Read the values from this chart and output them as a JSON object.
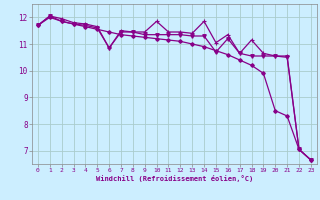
{
  "xlabel": "Windchill (Refroidissement éolien,°C)",
  "xlim": [
    -0.5,
    23.5
  ],
  "ylim": [
    6.5,
    12.5
  ],
  "yticks": [
    7,
    8,
    9,
    10,
    11,
    12
  ],
  "xticks": [
    0,
    1,
    2,
    3,
    4,
    5,
    6,
    7,
    8,
    9,
    10,
    11,
    12,
    13,
    14,
    15,
    16,
    17,
    18,
    19,
    20,
    21,
    22,
    23
  ],
  "bg_color": "#cceeff",
  "grid_color": "#aacccc",
  "line_color": "#880088",
  "series_smooth": [
    11.7,
    12.0,
    11.85,
    11.75,
    11.65,
    11.55,
    11.45,
    11.35,
    11.3,
    11.25,
    11.2,
    11.15,
    11.1,
    11.0,
    10.9,
    10.75,
    10.6,
    10.4,
    10.2,
    9.9,
    8.5,
    8.3,
    7.05,
    6.65
  ],
  "series_top": [
    11.7,
    12.05,
    11.95,
    11.8,
    11.75,
    11.65,
    10.85,
    11.5,
    11.45,
    11.45,
    11.85,
    11.45,
    11.45,
    11.4,
    11.85,
    11.05,
    11.35,
    10.65,
    11.15,
    10.65,
    10.55,
    10.55,
    7.05,
    6.65
  ],
  "series_mid": [
    11.7,
    12.05,
    11.85,
    11.75,
    11.7,
    11.6,
    10.85,
    11.45,
    11.45,
    11.35,
    11.35,
    11.35,
    11.35,
    11.3,
    11.3,
    10.7,
    11.2,
    10.65,
    10.55,
    10.55,
    10.55,
    10.5,
    7.05,
    6.65
  ]
}
